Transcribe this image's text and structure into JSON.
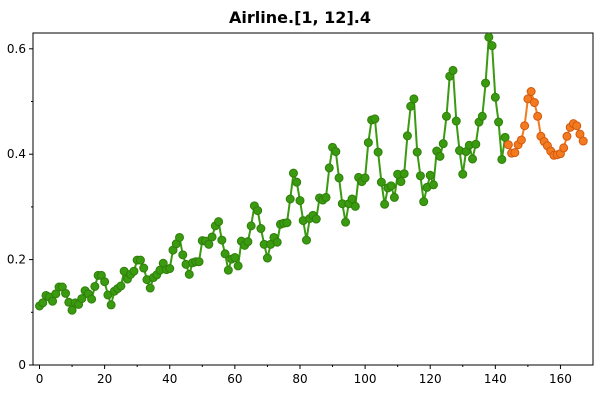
{
  "chart_data": {
    "type": "line",
    "title": "Airline.[1, 12].4",
    "xlabel": "",
    "ylabel": "",
    "xlim": [
      -2,
      170
    ],
    "ylim": [
      0,
      0.63
    ],
    "xticks": [
      0,
      20,
      40,
      60,
      80,
      100,
      120,
      140,
      160
    ],
    "yticks": [
      0,
      0.2,
      0.4,
      0.6
    ],
    "ytick_labels": [
      "0",
      "0.2",
      "0.4",
      "0.6"
    ],
    "grid": false,
    "legend": "none",
    "series": [
      {
        "color": "#3a9a10",
        "edge_color": "#2f7f0a",
        "x": [
          0,
          1,
          2,
          3,
          4,
          5,
          6,
          7,
          8,
          9,
          10,
          11,
          12,
          13,
          14,
          15,
          16,
          17,
          18,
          19,
          20,
          21,
          22,
          23,
          24,
          25,
          26,
          27,
          28,
          29,
          30,
          31,
          32,
          33,
          34,
          35,
          36,
          37,
          38,
          39,
          40,
          41,
          42,
          43,
          44,
          45,
          46,
          47,
          48,
          49,
          50,
          51,
          52,
          53,
          54,
          55,
          56,
          57,
          58,
          59,
          60,
          61,
          62,
          63,
          64,
          65,
          66,
          67,
          68,
          69,
          70,
          71,
          72,
          73,
          74,
          75,
          76,
          77,
          78,
          79,
          80,
          81,
          82,
          83,
          84,
          85,
          86,
          87,
          88,
          89,
          90,
          91,
          92,
          93,
          94,
          95,
          96,
          97,
          98,
          99,
          100,
          101,
          102,
          103,
          104,
          105,
          106,
          107,
          108,
          109,
          110,
          111,
          112,
          113,
          114,
          115,
          116,
          117,
          118,
          119,
          120,
          121,
          122,
          123,
          124,
          125,
          126,
          127,
          128,
          129,
          130,
          131,
          132,
          133,
          134,
          135,
          136,
          137,
          138,
          139,
          140,
          141,
          142,
          143
        ],
        "y": [
          0.112,
          0.118,
          0.132,
          0.129,
          0.121,
          0.135,
          0.148,
          0.148,
          0.136,
          0.119,
          0.104,
          0.118,
          0.115,
          0.126,
          0.141,
          0.135,
          0.125,
          0.149,
          0.17,
          0.17,
          0.158,
          0.133,
          0.114,
          0.14,
          0.145,
          0.15,
          0.178,
          0.163,
          0.172,
          0.178,
          0.199,
          0.199,
          0.184,
          0.162,
          0.146,
          0.166,
          0.171,
          0.18,
          0.193,
          0.181,
          0.183,
          0.218,
          0.23,
          0.242,
          0.209,
          0.191,
          0.172,
          0.194,
          0.196,
          0.196,
          0.236,
          0.235,
          0.229,
          0.243,
          0.264,
          0.272,
          0.237,
          0.211,
          0.18,
          0.201,
          0.204,
          0.188,
          0.235,
          0.227,
          0.234,
          0.264,
          0.302,
          0.293,
          0.259,
          0.229,
          0.203,
          0.229,
          0.242,
          0.233,
          0.267,
          0.269,
          0.27,
          0.315,
          0.364,
          0.347,
          0.312,
          0.274,
          0.237,
          0.278,
          0.284,
          0.277,
          0.317,
          0.313,
          0.318,
          0.374,
          0.413,
          0.405,
          0.355,
          0.306,
          0.271,
          0.306,
          0.315,
          0.301,
          0.356,
          0.348,
          0.355,
          0.422,
          0.465,
          0.467,
          0.404,
          0.347,
          0.305,
          0.336,
          0.34,
          0.318,
          0.362,
          0.348,
          0.363,
          0.435,
          0.491,
          0.505,
          0.404,
          0.359,
          0.31,
          0.337,
          0.36,
          0.342,
          0.406,
          0.396,
          0.42,
          0.472,
          0.548,
          0.559,
          0.463,
          0.407,
          0.362,
          0.405,
          0.417,
          0.391,
          0.419,
          0.461,
          0.472,
          0.535,
          0.622,
          0.606,
          0.508,
          0.461,
          0.39,
          0.432
        ]
      },
      {
        "color": "#f47a20",
        "edge_color": "#d05a10",
        "x": [
          144,
          145,
          146,
          147,
          148,
          149,
          150,
          151,
          152,
          153,
          154,
          155,
          156,
          157,
          158,
          159,
          160,
          161,
          162,
          163,
          164,
          165,
          166,
          167
        ],
        "y": [
          0.418,
          0.402,
          0.403,
          0.418,
          0.427,
          0.454,
          0.505,
          0.519,
          0.498,
          0.472,
          0.434,
          0.424,
          0.416,
          0.406,
          0.398,
          0.399,
          0.401,
          0.412,
          0.434,
          0.451,
          0.458,
          0.454,
          0.438,
          0.425
        ]
      }
    ]
  }
}
